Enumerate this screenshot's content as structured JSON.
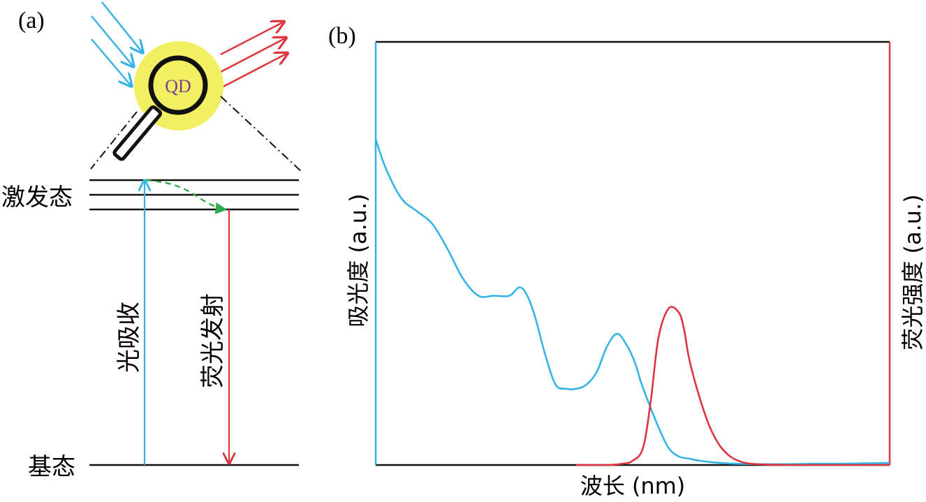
{
  "panel_a": {
    "label": "(a)",
    "qd_label": "QD",
    "excited_state_label": "激发态",
    "ground_state_label": "基态",
    "absorption_label": "光吸收",
    "emission_label": "荧光发射"
  },
  "panel_b": {
    "label": "(b)"
  },
  "chart_data": {
    "type": "line",
    "title": "",
    "xlabel": "波长 (nm)",
    "ylabel": "吸光度 (a.u.)",
    "y2label": "荧光强度 (a.u.)",
    "xlim": [
      0,
      100
    ],
    "ylim": [
      0,
      100
    ],
    "x_ticks": [],
    "y_ticks": [],
    "grid": false,
    "series": [
      {
        "role": "absorbance",
        "color": "#36b3e6",
        "x": [
          0,
          2,
          5,
          8,
          11,
          14,
          17,
          20,
          23,
          26,
          28,
          29.5,
          31,
          33,
          35,
          37,
          39,
          41,
          43,
          45,
          47,
          49,
          50.5,
          51.5,
          53,
          55,
          57,
          59,
          61,
          63,
          66,
          70,
          75,
          80,
          85,
          90,
          95,
          100
        ],
        "y": [
          77,
          70,
          63,
          60,
          57,
          51,
          44,
          40,
          40,
          40,
          42,
          40,
          35,
          26,
          19,
          18,
          18,
          19,
          22,
          28,
          31,
          28,
          24,
          20,
          15,
          9,
          4,
          2,
          1.5,
          1,
          0.6,
          0.3,
          0.2,
          0.2,
          0.3,
          0.3,
          0.4,
          0.5
        ]
      },
      {
        "role": "fluorescence",
        "color": "#e0343c",
        "x": [
          39,
          45,
          48,
          50,
          52,
          53.5,
          55,
          57,
          59,
          60,
          61,
          63,
          65,
          67,
          69,
          71,
          73,
          76,
          80,
          85,
          90,
          100
        ],
        "y": [
          0,
          0,
          0.3,
          1,
          4,
          15,
          30,
          37,
          36,
          32,
          25,
          16,
          9,
          4.5,
          2,
          0.8,
          0.3,
          0.1,
          0,
          0,
          0,
          0
        ]
      }
    ]
  },
  "colors": {
    "absorption": "#36b3e6",
    "emission": "#e0343c",
    "relaxation": "#2ea84a",
    "qd_glow": "#f2ef63",
    "axis": "#000000"
  }
}
